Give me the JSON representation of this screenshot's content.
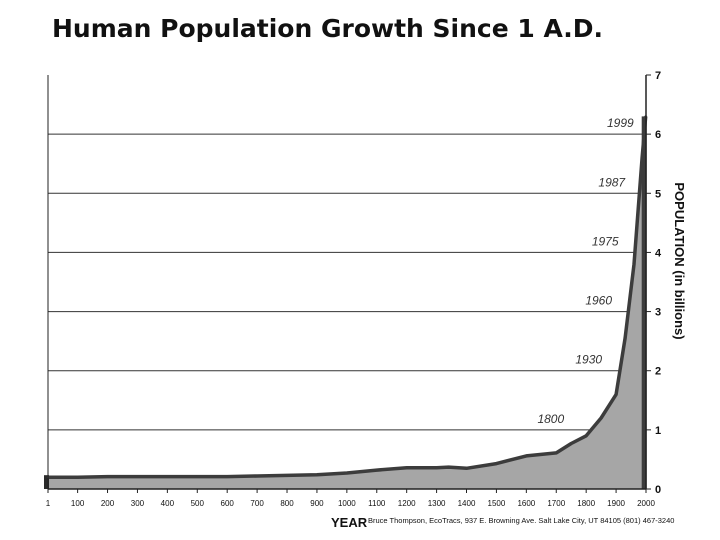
{
  "title": "Human Population Growth Since 1 A.D.",
  "credit": "Bruce Thompson, EcoTracs, 937 E. Browning Ave. Salt Lake City, UT 84105 (801) 467-3240",
  "chart_data": {
    "type": "area",
    "title": "Human Population Growth Since 1 A.D.",
    "xlabel": "YEAR",
    "ylabel": "POPULATION (in billions)",
    "xlim": [
      1,
      2000
    ],
    "ylim": [
      0,
      7
    ],
    "grid": "horizontal",
    "x_ticks": [
      "1",
      "100",
      "200",
      "300",
      "400",
      "500",
      "600",
      "700",
      "800",
      "900",
      "1000",
      "1100",
      "1200",
      "1300",
      "1400",
      "1500",
      "1600",
      "1700",
      "1800",
      "1900",
      "2000"
    ],
    "y_ticks": [
      "0",
      "1",
      "2",
      "3",
      "4",
      "5",
      "6",
      "7"
    ],
    "x": [
      1,
      100,
      200,
      300,
      400,
      500,
      600,
      700,
      800,
      900,
      1000,
      1100,
      1200,
      1300,
      1340,
      1400,
      1500,
      1600,
      1700,
      1750,
      1800,
      1850,
      1900,
      1930,
      1960,
      1975,
      1987,
      1999
    ],
    "values": [
      0.2,
      0.2,
      0.21,
      0.21,
      0.21,
      0.21,
      0.21,
      0.22,
      0.23,
      0.24,
      0.27,
      0.32,
      0.36,
      0.36,
      0.37,
      0.35,
      0.43,
      0.56,
      0.61,
      0.77,
      0.9,
      1.2,
      1.6,
      2.55,
      3.8,
      4.8,
      5.6,
      6.3
    ],
    "annotations": [
      {
        "label": "1800",
        "x": 1800,
        "y": 1
      },
      {
        "label": "1930",
        "x": 1930,
        "y": 2
      },
      {
        "label": "1960",
        "x": 1960,
        "y": 3
      },
      {
        "label": "1975",
        "x": 1975,
        "y": 4
      },
      {
        "label": "1987",
        "x": 1987,
        "y": 5
      },
      {
        "label": "1999",
        "x": 1999,
        "y": 6
      }
    ],
    "fill_color": "#a6a6a6",
    "line_color": "#3c3c3c"
  }
}
